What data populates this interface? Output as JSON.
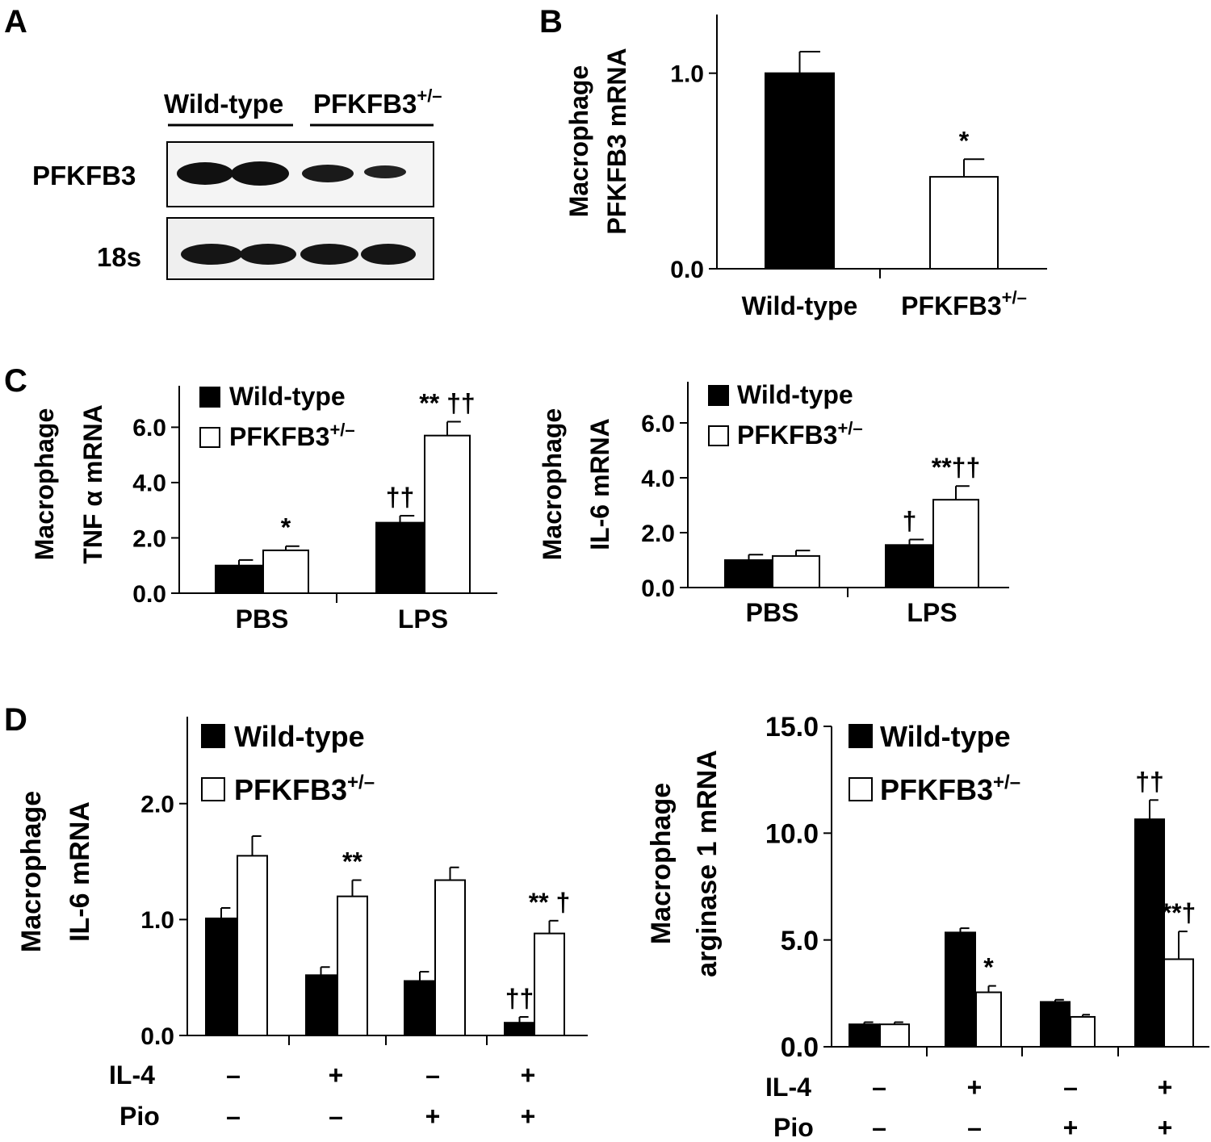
{
  "panels": {
    "A": {
      "letter": "A",
      "groups": [
        "Wild-type",
        "PFKFB3"
      ],
      "group_sup": "+/–",
      "rows": [
        "PFKFB3",
        "18s"
      ]
    },
    "B": {
      "letter": "B"
    },
    "C": {
      "letter": "C"
    },
    "D": {
      "letter": "D"
    }
  },
  "legend": {
    "wt": "Wild-type",
    "het": "PFKFB3",
    "het_sup": "+/–"
  },
  "treatment_rows": {
    "il4_label": "IL-4",
    "pio_label": "Pio",
    "il4": [
      "–",
      "+",
      "–",
      "+"
    ],
    "pio": [
      "–",
      "–",
      "+",
      "+"
    ]
  },
  "colors": {
    "wild_type": "#000000",
    "pfkfb3": "#ffffff",
    "axis": "#000000"
  },
  "chart_data": [
    {
      "id": "B",
      "type": "bar",
      "ylabel": [
        "Macrophage",
        "PFKFB3 mRNA"
      ],
      "ylim": [
        0,
        1.3
      ],
      "yticks": [
        0.0,
        1.0
      ],
      "ytick_labels": [
        "0.0",
        "1.0"
      ],
      "categories": [
        "Wild-type",
        "PFKFB3"
      ],
      "category_sup": [
        "",
        "+/–"
      ],
      "colors": [
        "#000000",
        "#ffffff"
      ],
      "values": [
        1.0,
        0.47
      ],
      "errors": [
        0.11,
        0.09
      ],
      "annotations": [
        "",
        "*"
      ]
    },
    {
      "id": "C1",
      "type": "bar",
      "ylabel": [
        "Macrophage",
        "TNF α mRNA"
      ],
      "ylim": [
        0,
        7.5
      ],
      "yticks": [
        0,
        2,
        4,
        6
      ],
      "ytick_labels": [
        "0.0",
        "2.0",
        "4.0",
        "6.0"
      ],
      "categories": [
        "PBS",
        "LPS"
      ],
      "series": [
        {
          "name": "Wild-type",
          "values": [
            1.0,
            2.55
          ],
          "errors": [
            0.2,
            0.25
          ],
          "annotations": [
            "",
            "††"
          ]
        },
        {
          "name": "PFKFB3+/–",
          "values": [
            1.55,
            5.7
          ],
          "errors": [
            0.15,
            0.5
          ],
          "annotations": [
            "*",
            "** ††"
          ]
        }
      ]
    },
    {
      "id": "C2",
      "type": "bar",
      "ylabel": [
        "Macrophage",
        "IL-6 mRNA"
      ],
      "ylim": [
        0,
        7.5
      ],
      "yticks": [
        0,
        2,
        4,
        6
      ],
      "ytick_labels": [
        "0.0",
        "2.0",
        "4.0",
        "6.0"
      ],
      "categories": [
        "PBS",
        "LPS"
      ],
      "series": [
        {
          "name": "Wild-type",
          "values": [
            1.0,
            1.55
          ],
          "errors": [
            0.2,
            0.2
          ],
          "annotations": [
            "",
            "†"
          ]
        },
        {
          "name": "PFKFB3+/–",
          "values": [
            1.15,
            3.2
          ],
          "errors": [
            0.2,
            0.5
          ],
          "annotations": [
            "",
            "**††"
          ]
        }
      ]
    },
    {
      "id": "D1",
      "type": "bar",
      "ylabel": [
        "Macrophage",
        "IL-6 mRNA"
      ],
      "ylim": [
        0,
        2.75
      ],
      "yticks": [
        0,
        1,
        2
      ],
      "ytick_labels": [
        "0.0",
        "1.0",
        "2.0"
      ],
      "categories": [
        "1",
        "2",
        "3",
        "4"
      ],
      "series": [
        {
          "name": "Wild-type",
          "values": [
            1.01,
            0.52,
            0.47,
            0.11
          ],
          "errors": [
            0.09,
            0.07,
            0.08,
            0.05
          ],
          "annotations": [
            "",
            "",
            "",
            "††"
          ]
        },
        {
          "name": "PFKFB3+/–",
          "values": [
            1.55,
            1.2,
            1.34,
            0.88
          ],
          "errors": [
            0.17,
            0.14,
            0.11,
            0.11
          ],
          "annotations": [
            "",
            "**",
            "",
            "** †"
          ]
        }
      ]
    },
    {
      "id": "D2",
      "type": "bar",
      "ylabel": [
        "Macrophage",
        "arginase 1 mRNA"
      ],
      "ylim": [
        0,
        15
      ],
      "yticks": [
        0,
        5,
        10,
        15
      ],
      "ytick_labels": [
        "0.0",
        "5.0",
        "10.0",
        "15.0"
      ],
      "categories": [
        "1",
        "2",
        "3",
        "4"
      ],
      "series": [
        {
          "name": "Wild-type",
          "values": [
            1.05,
            5.35,
            2.1,
            10.65
          ],
          "errors": [
            0.1,
            0.2,
            0.1,
            0.9
          ],
          "annotations": [
            "",
            "",
            "",
            "††"
          ]
        },
        {
          "name": "PFKFB3+/–",
          "values": [
            1.05,
            2.55,
            1.4,
            4.1
          ],
          "errors": [
            0.1,
            0.3,
            0.1,
            1.3
          ],
          "annotations": [
            "",
            "*",
            "",
            "**†"
          ]
        }
      ]
    }
  ]
}
